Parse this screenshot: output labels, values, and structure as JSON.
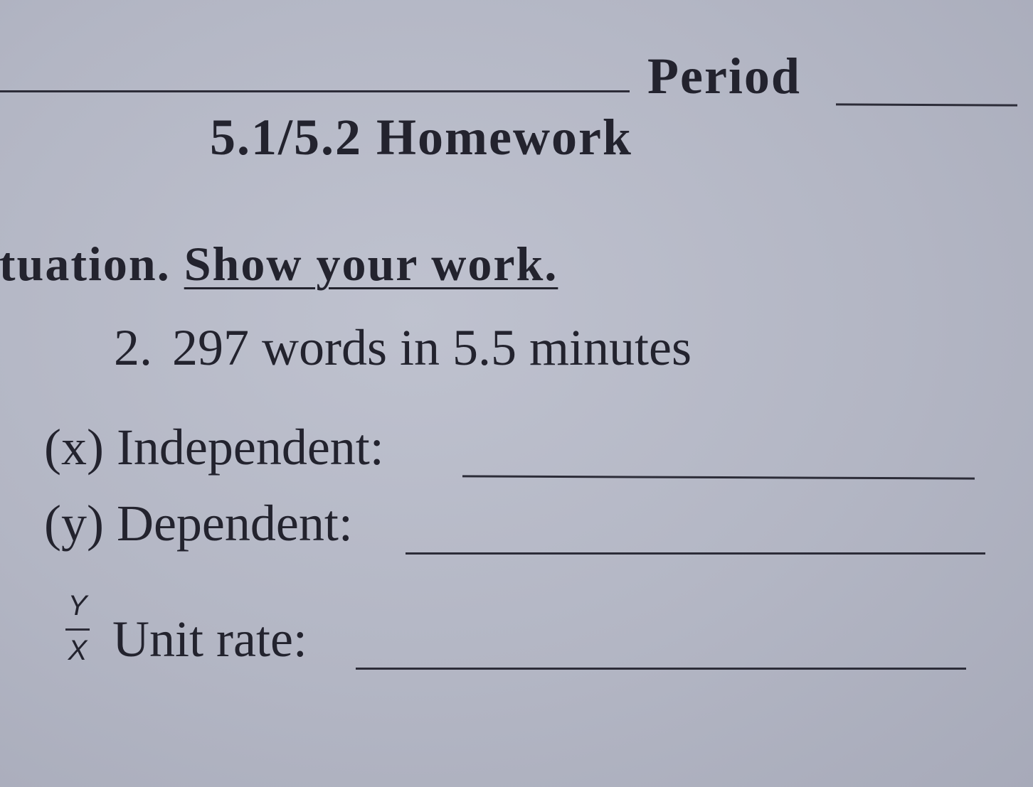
{
  "header": {
    "period_label": "Period",
    "title": "5.1/5.2 Homework"
  },
  "instructions": {
    "lead": "ituation.",
    "emphasis": "Show your work."
  },
  "problem": {
    "number": "2.",
    "text": "297 words in 5.5 minutes",
    "independent_label": "(x) Independent:",
    "dependent_label": "(y) Dependent:",
    "fraction_numerator": "Y",
    "fraction_denominator": "X",
    "unit_rate_label": "Unit rate:"
  }
}
